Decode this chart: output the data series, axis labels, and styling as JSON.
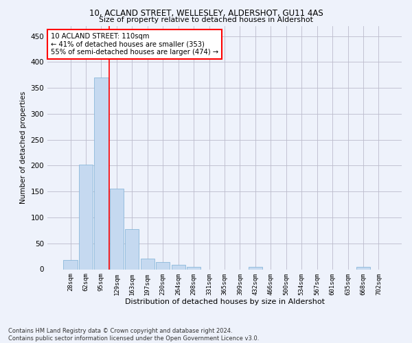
{
  "title1": "10, ACLAND STREET, WELLESLEY, ALDERSHOT, GU11 4AS",
  "title2": "Size of property relative to detached houses in Aldershot",
  "xlabel": "Distribution of detached houses by size in Aldershot",
  "ylabel": "Number of detached properties",
  "bar_color": "#c5d9f0",
  "bar_edge_color": "#7bafd4",
  "categories": [
    "28sqm",
    "62sqm",
    "95sqm",
    "129sqm",
    "163sqm",
    "197sqm",
    "230sqm",
    "264sqm",
    "298sqm",
    "331sqm",
    "365sqm",
    "399sqm",
    "432sqm",
    "466sqm",
    "500sqm",
    "534sqm",
    "567sqm",
    "601sqm",
    "635sqm",
    "668sqm",
    "702sqm"
  ],
  "values": [
    18,
    202,
    370,
    155,
    78,
    21,
    14,
    8,
    5,
    0,
    0,
    0,
    5,
    0,
    0,
    0,
    0,
    0,
    0,
    5,
    0
  ],
  "ylim": [
    0,
    470
  ],
  "yticks": [
    0,
    50,
    100,
    150,
    200,
    250,
    300,
    350,
    400,
    450
  ],
  "annotation_text": "10 ACLAND STREET: 110sqm\n← 41% of detached houses are smaller (353)\n55% of semi-detached houses are larger (474) →",
  "annotation_box_color": "white",
  "annotation_box_edge_color": "red",
  "vline_color": "red",
  "vline_x_index": 2.5,
  "footer_text": "Contains HM Land Registry data © Crown copyright and database right 2024.\nContains public sector information licensed under the Open Government Licence v3.0.",
  "background_color": "#eef2fb",
  "grid_color": "#bbbbcc"
}
